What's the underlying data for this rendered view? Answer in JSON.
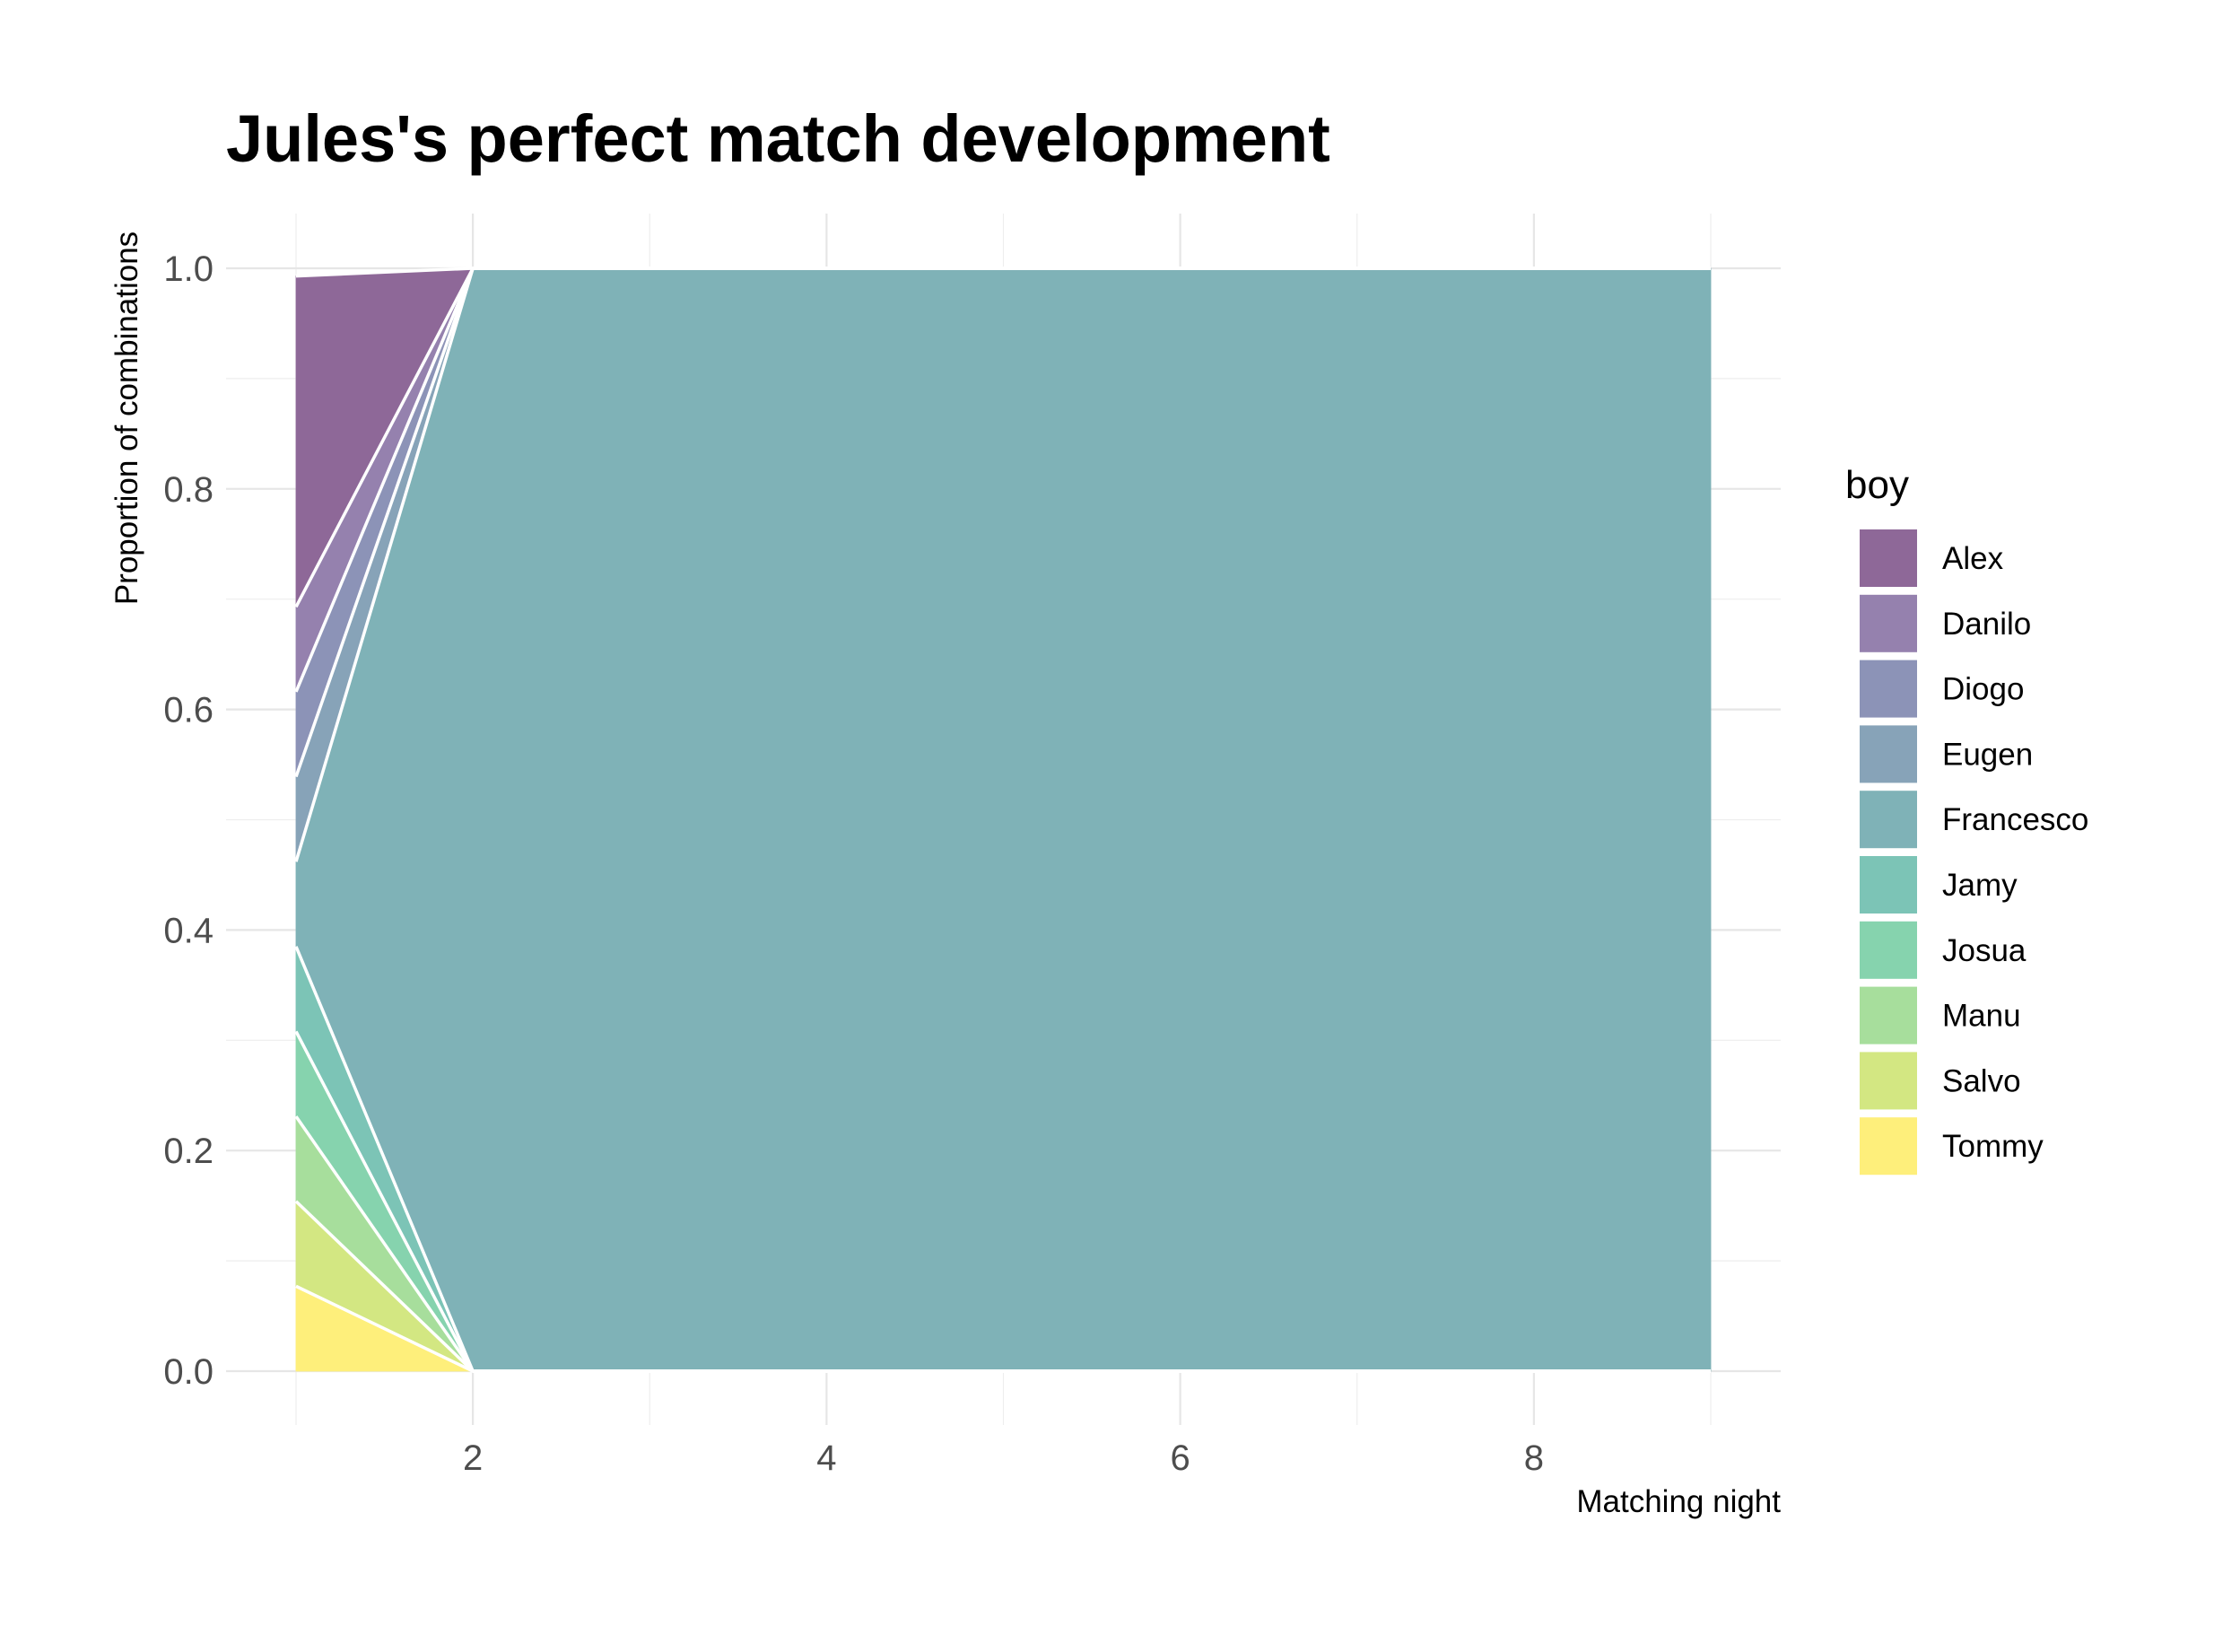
{
  "chart_data": {
    "type": "area",
    "title": "Jules's perfect match development",
    "xlabel": "Matching night",
    "ylabel": "Proportion of combinations",
    "xlim": [
      1,
      9
    ],
    "ylim": [
      0,
      1
    ],
    "x_ticks": [
      2,
      4,
      6,
      8
    ],
    "y_ticks": [
      0.0,
      0.2,
      0.4,
      0.6,
      0.8,
      1.0
    ],
    "y_tick_labels": [
      "0.0",
      "0.2",
      "0.4",
      "0.6",
      "0.8",
      "1.0"
    ],
    "grid": true,
    "stacked": true,
    "legend_title": "boy",
    "legend_position": "right",
    "x": [
      1,
      2,
      3,
      4,
      5,
      6,
      7,
      8,
      9
    ],
    "series": [
      {
        "name": "Alex",
        "color": "#8e6898",
        "values": [
          0.3,
          0,
          0,
          0,
          0,
          0,
          0,
          0,
          0
        ]
      },
      {
        "name": "Danilo",
        "color": "#9581ae",
        "values": [
          0.077,
          0,
          0,
          0,
          0,
          0,
          0,
          0,
          0
        ]
      },
      {
        "name": "Diogo",
        "color": "#8c93b7",
        "values": [
          0.077,
          0,
          0,
          0,
          0,
          0,
          0,
          0,
          0
        ]
      },
      {
        "name": "Eugen",
        "color": "#87a3b8",
        "values": [
          0.077,
          0,
          0,
          0,
          0,
          0,
          0,
          0,
          0
        ]
      },
      {
        "name": "Francesco",
        "color": "#7fb2b7",
        "values": [
          0.077,
          1,
          1,
          1,
          1,
          1,
          1,
          1,
          1
        ]
      },
      {
        "name": "Jamy",
        "color": "#7cc4b6",
        "values": [
          0.077,
          0,
          0,
          0,
          0,
          0,
          0,
          0,
          0
        ]
      },
      {
        "name": "Josua",
        "color": "#86d3ae",
        "values": [
          0.077,
          0,
          0,
          0,
          0,
          0,
          0,
          0,
          0
        ]
      },
      {
        "name": "Manu",
        "color": "#a7de9c",
        "values": [
          0.077,
          0,
          0,
          0,
          0,
          0,
          0,
          0,
          0
        ]
      },
      {
        "name": "Salvo",
        "color": "#d3e782",
        "values": [
          0.077,
          0,
          0,
          0,
          0,
          0,
          0,
          0,
          0
        ]
      },
      {
        "name": "Tommy",
        "color": "#feef7b",
        "values": [
          0.077,
          0,
          0,
          0,
          0,
          0,
          0,
          0,
          0
        ]
      }
    ]
  }
}
